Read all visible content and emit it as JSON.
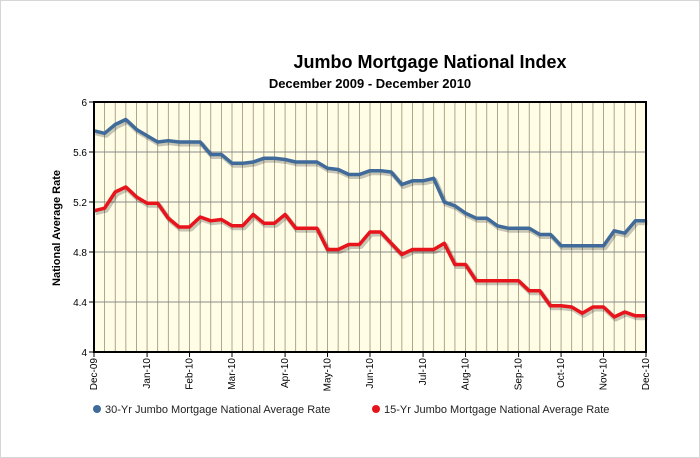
{
  "chart_data": {
    "type": "line",
    "title": "Jumbo Mortgage National Index",
    "subtitle": "December 2009 - December 2010",
    "ylabel": "National Average Rate",
    "xlabel": "",
    "ylim": [
      4,
      6
    ],
    "yticks": [
      4,
      4.4,
      4.8,
      5.2,
      5.6,
      6
    ],
    "ytick_labels": [
      "4",
      "4.4",
      "4.8",
      "5.2",
      "5.6",
      "6"
    ],
    "grid": true,
    "x_count": 53,
    "x_tick_labels": [
      {
        "index": 0,
        "label": "Dec-09"
      },
      {
        "index": 5,
        "label": "Jan-10"
      },
      {
        "index": 9,
        "label": "Feb-10"
      },
      {
        "index": 13,
        "label": "Mar-10"
      },
      {
        "index": 18,
        "label": "Apr-10"
      },
      {
        "index": 22,
        "label": "May-10"
      },
      {
        "index": 26,
        "label": "Jun-10"
      },
      {
        "index": 31,
        "label": "Jul-10"
      },
      {
        "index": 35,
        "label": "Aug-10"
      },
      {
        "index": 40,
        "label": "Sep-10"
      },
      {
        "index": 44,
        "label": "Oct-10"
      },
      {
        "index": 48,
        "label": "Nov-10"
      },
      {
        "index": 52,
        "label": "Dec-10"
      }
    ],
    "series": [
      {
        "name": "30-Yr Jumbo Mortgage National Average Rate",
        "color": "#3f6a9a",
        "values": [
          5.77,
          5.75,
          5.82,
          5.86,
          5.78,
          5.73,
          5.68,
          5.69,
          5.68,
          5.68,
          5.68,
          5.58,
          5.58,
          5.51,
          5.51,
          5.52,
          5.55,
          5.55,
          5.54,
          5.52,
          5.52,
          5.52,
          5.47,
          5.46,
          5.42,
          5.42,
          5.45,
          5.45,
          5.44,
          5.34,
          5.37,
          5.37,
          5.39,
          5.2,
          5.17,
          5.11,
          5.07,
          5.07,
          5.01,
          4.99,
          4.99,
          4.99,
          4.94,
          4.94,
          4.85,
          4.85,
          4.85,
          4.85,
          4.85,
          4.97,
          4.95,
          5.05,
          5.05
        ]
      },
      {
        "name": "15-Yr Jumbo Mortgage National Average Rate",
        "color": "#e8141c",
        "values": [
          5.13,
          5.15,
          5.28,
          5.32,
          5.24,
          5.19,
          5.19,
          5.07,
          5.0,
          5.0,
          5.08,
          5.05,
          5.06,
          5.01,
          5.01,
          5.1,
          5.03,
          5.03,
          5.1,
          4.99,
          4.99,
          4.99,
          4.82,
          4.82,
          4.86,
          4.86,
          4.96,
          4.96,
          4.87,
          4.78,
          4.82,
          4.82,
          4.82,
          4.87,
          4.7,
          4.7,
          4.57,
          4.57,
          4.57,
          4.57,
          4.57,
          4.49,
          4.49,
          4.37,
          4.37,
          4.36,
          4.31,
          4.36,
          4.36,
          4.28,
          4.32,
          4.29,
          4.29
        ]
      }
    ],
    "legend_position": "bottom"
  }
}
